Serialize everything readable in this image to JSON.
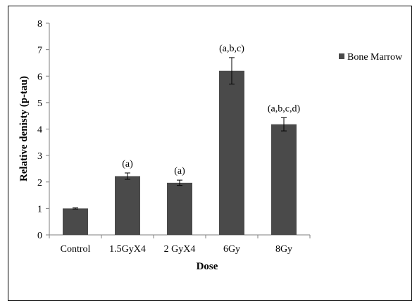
{
  "chart_data": {
    "type": "bar",
    "categories": [
      "Control",
      "1.5GyX4",
      "2 GyX4",
      "6Gy",
      "8Gy"
    ],
    "series": [
      {
        "name": "Bone Marrow",
        "color": "#4a4a4a",
        "values": [
          1.0,
          2.22,
          1.97,
          6.2,
          4.18
        ],
        "error": [
          0.02,
          0.12,
          0.1,
          0.5,
          0.25
        ]
      }
    ],
    "annotations": [
      "",
      "(a)",
      "(a)",
      "(a,b,c)",
      "(a,b,c,d)"
    ],
    "xlabel": "Dose",
    "ylabel": "Relative denisty (p-tau)",
    "ylim": [
      0,
      8
    ],
    "yticks": [
      "0",
      "1",
      "2",
      "3",
      "4",
      "5",
      "6",
      "7",
      "8"
    ],
    "grid": false,
    "legend_position": "top-right"
  }
}
